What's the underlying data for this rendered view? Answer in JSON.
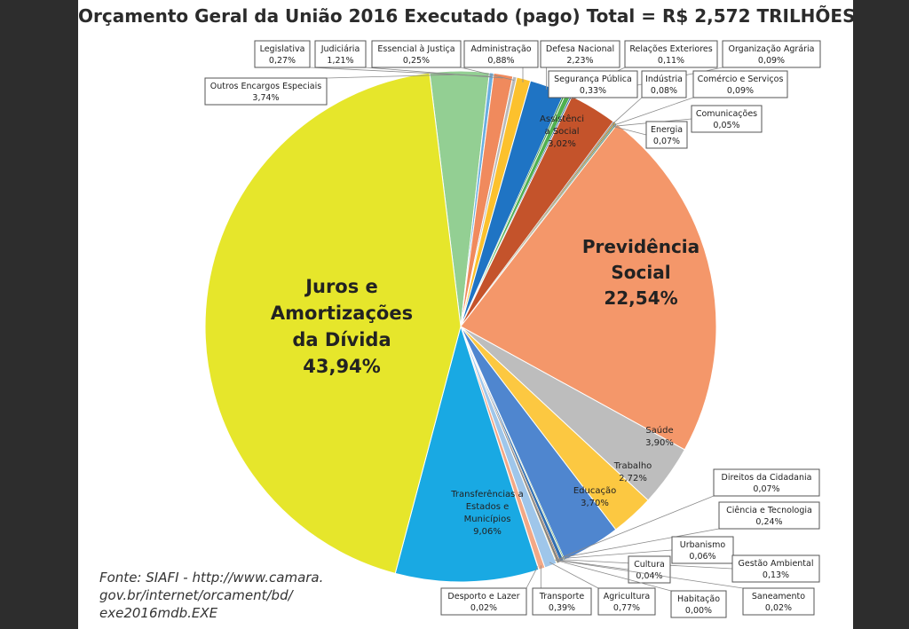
{
  "chart_data": {
    "type": "pie",
    "title": "Orçamento Geral da União 2016 Executado (pago) Total = R$ 2,572 TRILHÕES",
    "unit": "%",
    "slices": [
      {
        "name": "Outros Encargos Especiais",
        "value_label": "3,74%",
        "value": 3.74,
        "color": "#93cf93"
      },
      {
        "name": "Legislativa",
        "value_label": "0,27%",
        "value": 0.27,
        "color": "#6aaee0"
      },
      {
        "name": "Judiciária",
        "value_label": "1,21%",
        "value": 1.21,
        "color": "#f08a5d"
      },
      {
        "name": "Essencial à Justiça",
        "value_label": "0,25%",
        "value": 0.25,
        "color": "#b9b9b9"
      },
      {
        "name": "Administração",
        "value_label": "0,88%",
        "value": 0.88,
        "color": "#fcc12d"
      },
      {
        "name": "Defesa Nacional",
        "value_label": "2,23%",
        "value": 2.23,
        "color": "#1f74c4"
      },
      {
        "name": "Relações Exteriores",
        "value_label": "0,11%",
        "value": 0.11,
        "color": "#3b8f3b"
      },
      {
        "name": "Segurança Pública",
        "value_label": "0,33%",
        "value": 0.33,
        "color": "#4fb04f"
      },
      {
        "name": "Organização Agrária",
        "value_label": "0,09%",
        "value": 0.09,
        "color": "#2a5a9c"
      },
      {
        "name": "Assistência Social",
        "value_label": "3,02%",
        "value": 3.02,
        "color": "#c4532b"
      },
      {
        "name": "Indústria",
        "value_label": "0,08%",
        "value": 0.08,
        "color": "#8a8a8a"
      },
      {
        "name": "Comércio e Serviços",
        "value_label": "0,09%",
        "value": 0.09,
        "color": "#b08a2a"
      },
      {
        "name": "Comunicações",
        "value_label": "0,05%",
        "value": 0.05,
        "color": "#2a6fb0"
      },
      {
        "name": "Energia",
        "value_label": "0,07%",
        "value": 0.07,
        "color": "#3a7d3a"
      },
      {
        "name": "Previdência Social",
        "value_label": "22,54%",
        "value": 22.54,
        "color": "#f4976a"
      },
      {
        "name": "Saúde",
        "value_label": "3,90%",
        "value": 3.9,
        "color": "#bdbdbd"
      },
      {
        "name": "Trabalho",
        "value_label": "2,72%",
        "value": 2.72,
        "color": "#fcc841"
      },
      {
        "name": "Educação",
        "value_label": "3,70%",
        "value": 3.7,
        "color": "#4f86cf"
      },
      {
        "name": "Direitos da Cidadania",
        "value_label": "0,07%",
        "value": 0.07,
        "color": "#5aa85a"
      },
      {
        "name": "Ciência e Tecnologia",
        "value_label": "0,24%",
        "value": 0.24,
        "color": "#2f6fb2"
      },
      {
        "name": "Urbanismo",
        "value_label": "0,06%",
        "value": 0.06,
        "color": "#8c5a3c"
      },
      {
        "name": "Gestão Ambiental",
        "value_label": "0,13%",
        "value": 0.13,
        "color": "#7a7a7a"
      },
      {
        "name": "Cultura",
        "value_label": "0,04%",
        "value": 0.04,
        "color": "#c9a227"
      },
      {
        "name": "Saneamento",
        "value_label": "0,02%",
        "value": 0.02,
        "color": "#3f7fc0"
      },
      {
        "name": "Habitação",
        "value_label": "0,00%",
        "value": 0.0,
        "color": "#999999"
      },
      {
        "name": "Agricultura",
        "value_label": "0,77%",
        "value": 0.77,
        "color": "#9fc6ea"
      },
      {
        "name": "Transporte",
        "value_label": "0,39%",
        "value": 0.39,
        "color": "#f3a886"
      },
      {
        "name": "Desporto e Lazer",
        "value_label": "0,02%",
        "value": 0.02,
        "color": "#cfcfcf"
      },
      {
        "name": "Transferências a Estados e Municípios",
        "value_label": "9,06%",
        "value": 9.06,
        "color": "#19a9e3"
      },
      {
        "name": "Juros e Amortizações da Dívida",
        "value_label": "43,94%",
        "value": 43.94,
        "color": "#e6e62b"
      }
    ]
  },
  "labels": {
    "juros": [
      "Juros e",
      "Amortizações",
      "da Dívida",
      "43,94%"
    ],
    "previdencia": [
      "Previdência",
      "Social",
      "22,54%"
    ],
    "transferencias": [
      "Transferências a",
      "Estados e",
      "Municípios",
      "9,06%"
    ],
    "assistencia": [
      "Assistênci",
      "a Social",
      "3,02%"
    ],
    "saude": [
      "Saúde",
      "3,90%"
    ],
    "trabalho": [
      "Trabalho",
      "2,72%"
    ],
    "educacao": [
      "Educação",
      "3,70%"
    ]
  },
  "source": "Fonte: SIAFI - http://www.camara.gov.br/internet/orcament/bd/exe2016mdb.EXE",
  "source_lines": [
    "Fonte: SIAFI -  http://www.camara.",
    "gov.br/internet/orcament/bd/",
    "exe2016mdb.EXE"
  ]
}
